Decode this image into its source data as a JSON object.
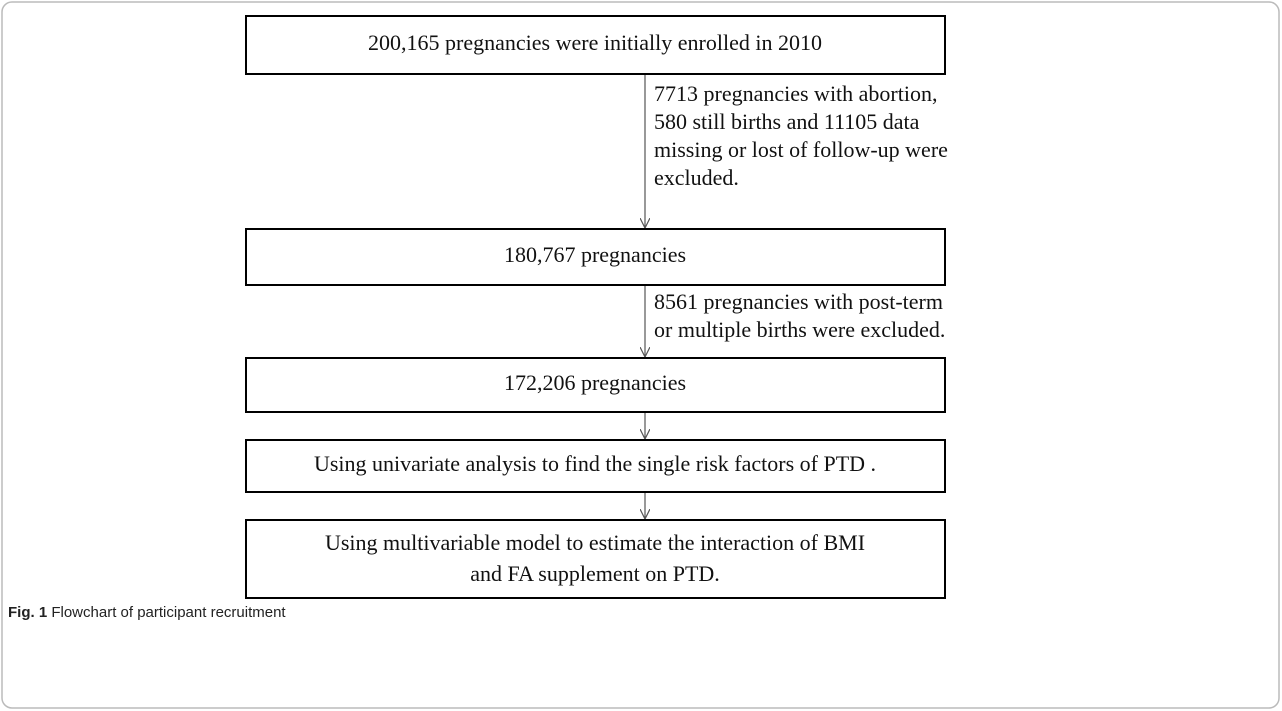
{
  "nodes": [
    {
      "lines": [
        "200,165 pregnancies were initially enrolled in 2010"
      ]
    },
    {
      "lines": [
        "180,767 pregnancies"
      ]
    },
    {
      "lines": [
        "172,206 pregnancies"
      ]
    },
    {
      "lines": [
        "Using univariate analysis to find the single risk factors of PTD ."
      ]
    },
    {
      "lines": [
        "Using multivariable model to estimate the interaction of BMI",
        "and FA supplement on PTD."
      ]
    }
  ],
  "exclusions": [
    {
      "lines": [
        "7713 pregnancies with abortion,",
        "580 still births and 11105 data",
        "missing or lost of follow-up were",
        "excluded."
      ]
    },
    {
      "lines": [
        "8561 pregnancies with post-term",
        "or multiple births were excluded."
      ]
    }
  ],
  "caption": {
    "label": "Fig. 1",
    "text": "Flowchart of participant recruitment"
  }
}
